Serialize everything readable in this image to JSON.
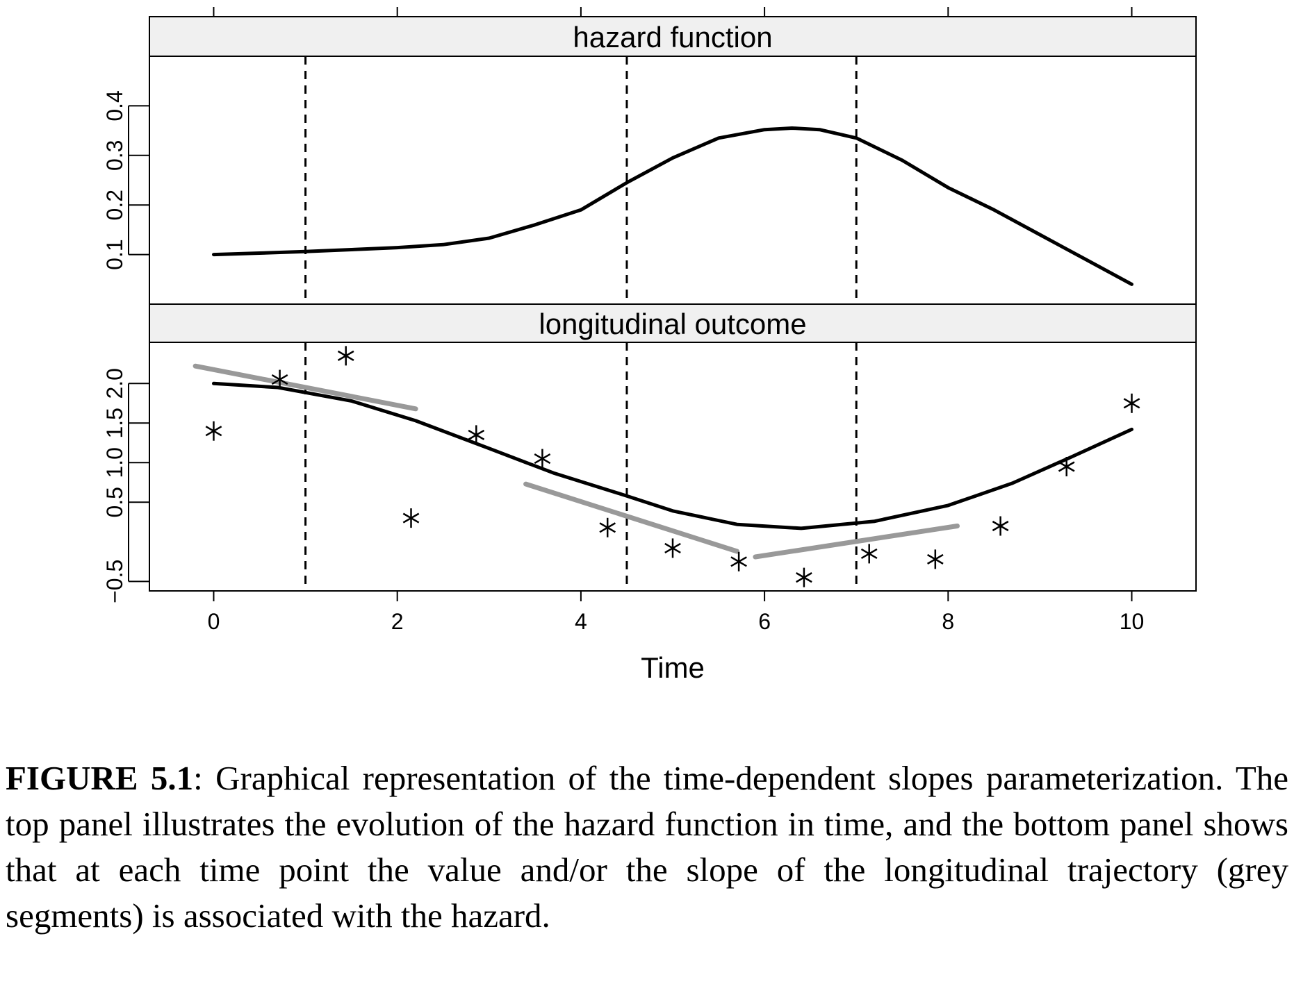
{
  "chart_data": [
    {
      "type": "line",
      "panel_title": "hazard function",
      "xlim": [
        -0.7,
        10.7
      ],
      "ylim": [
        0.0,
        0.5
      ],
      "yticks": [
        0.1,
        0.2,
        0.3,
        0.4
      ],
      "ytick_labels": [
        "0.1",
        "0.2",
        "0.3",
        "0.4"
      ],
      "vlines": [
        1,
        4.5,
        7
      ],
      "series": [
        {
          "x": [
            0,
            0.5,
            1,
            1.5,
            2,
            2.5,
            3,
            3.5,
            4,
            4.5,
            5,
            5.5,
            6,
            6.3,
            6.6,
            7,
            7.5,
            8,
            8.5,
            9,
            9.5,
            10
          ],
          "y": [
            0.1,
            0.103,
            0.106,
            0.11,
            0.114,
            0.12,
            0.133,
            0.16,
            0.19,
            0.245,
            0.295,
            0.335,
            0.352,
            0.355,
            0.352,
            0.335,
            0.29,
            0.235,
            0.19,
            0.14,
            0.09,
            0.04
          ]
        }
      ]
    },
    {
      "type": "line",
      "panel_title": "longitudinal outcome",
      "xlabel": "Time",
      "xlim": [
        -0.7,
        10.7
      ],
      "ylim": [
        -0.62,
        2.52
      ],
      "xticks": [
        0,
        2,
        4,
        6,
        8,
        10
      ],
      "xtick_labels": [
        "0",
        "2",
        "4",
        "6",
        "8",
        "10"
      ],
      "yticks": [
        -0.5,
        0.5,
        1.0,
        1.5,
        2.0
      ],
      "ytick_labels": [
        "−0.5",
        "0.5",
        "1.0",
        "1.5",
        "2.0"
      ],
      "vlines": [
        1,
        4.5,
        7
      ],
      "series": [
        {
          "x": [
            0,
            0.7,
            1.5,
            2.2,
            3,
            3.7,
            4.5,
            5,
            5.7,
            6.4,
            7.2,
            8,
            8.7,
            9.3,
            10
          ],
          "y": [
            2.0,
            1.95,
            1.78,
            1.53,
            1.18,
            0.87,
            0.58,
            0.39,
            0.22,
            0.17,
            0.26,
            0.46,
            0.74,
            1.05,
            1.42
          ],
          "color": "#000000"
        }
      ],
      "points": {
        "x": [
          0,
          0.72,
          1.44,
          2.15,
          2.86,
          3.58,
          4.29,
          5.0,
          5.72,
          6.43,
          7.14,
          7.86,
          8.57,
          9.29,
          10.0
        ],
        "y": [
          1.4,
          2.05,
          2.35,
          0.3,
          1.35,
          1.05,
          0.18,
          -0.08,
          -0.25,
          -0.45,
          -0.15,
          -0.22,
          0.2,
          0.95,
          1.75
        ]
      },
      "segments": [
        {
          "x": [
            -0.2,
            2.2
          ],
          "y": [
            2.22,
            1.68
          ],
          "color": "#999999"
        },
        {
          "x": [
            3.4,
            5.7
          ],
          "y": [
            0.73,
            -0.12
          ],
          "color": "#999999"
        },
        {
          "x": [
            5.9,
            8.1
          ],
          "y": [
            -0.19,
            0.2
          ],
          "color": "#999999"
        }
      ]
    }
  ],
  "caption": {
    "label": "FIGURE 5.1",
    "text": ": Graphical representation of the time-dependent slopes parameterization. The top panel illustrates the evolution of the hazard function in time, and the bottom panel shows that at each time point the value and/or the slope of the longitudinal trajectory (grey segments) is associated with the hazard."
  }
}
